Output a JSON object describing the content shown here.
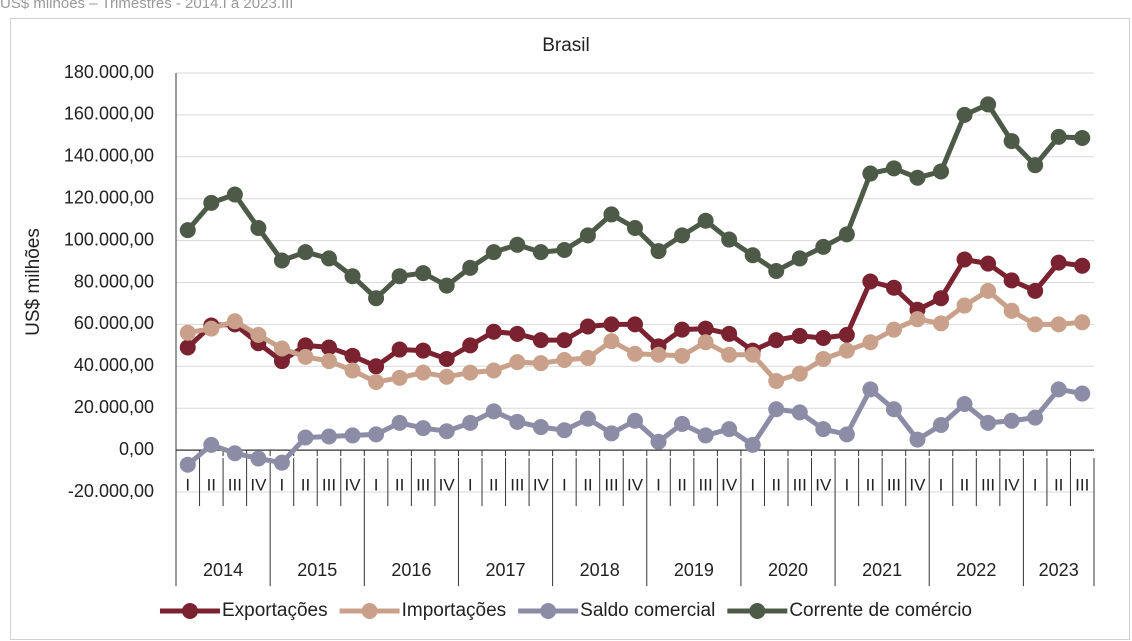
{
  "chart_data": {
    "type": "line",
    "note": "US$ milhões – Trimestres - 2014.I a 2023.III",
    "title": "Brasil",
    "y_label": "US$ milhões",
    "groups": [
      {
        "label": "2014",
        "categories": [
          "I",
          "II",
          "III",
          "IV"
        ]
      },
      {
        "label": "2015",
        "categories": [
          "I",
          "II",
          "III",
          "IV"
        ]
      },
      {
        "label": "2016",
        "categories": [
          "I",
          "II",
          "III",
          "IV"
        ]
      },
      {
        "label": "2017",
        "categories": [
          "I",
          "II",
          "III",
          "IV"
        ]
      },
      {
        "label": "2018",
        "categories": [
          "I",
          "II",
          "III",
          "IV"
        ]
      },
      {
        "label": "2019",
        "categories": [
          "I",
          "II",
          "III",
          "IV"
        ]
      },
      {
        "label": "2020",
        "categories": [
          "I",
          "II",
          "III",
          "IV"
        ]
      },
      {
        "label": "2021",
        "categories": [
          "I",
          "II",
          "III",
          "IV"
        ]
      },
      {
        "label": "2022",
        "categories": [
          "I",
          "II",
          "III",
          "IV"
        ]
      },
      {
        "label": "2023",
        "categories": [
          "I",
          "II",
          "III"
        ]
      }
    ],
    "series": [
      {
        "name": "Exportações",
        "color": "#7a2230",
        "values": [
          49000,
          59500,
          60000,
          51000,
          42500,
          50000,
          49000,
          45000,
          40000,
          48000,
          47500,
          43500,
          50000,
          56500,
          55500,
          52500,
          52500,
          59000,
          60000,
          60000,
          49500,
          57500,
          58000,
          55500,
          47500,
          52500,
          54500,
          53500,
          55000,
          80500,
          77500,
          67000,
          72500,
          91000,
          89000,
          81000,
          76000,
          89500,
          88000
        ]
      },
      {
        "name": "Importações",
        "color": "#c9a18a",
        "values": [
          56000,
          58000,
          61500,
          55000,
          48500,
          44500,
          42500,
          38000,
          32500,
          34500,
          37000,
          35000,
          37000,
          38000,
          42000,
          41500,
          43000,
          44000,
          52000,
          46000,
          45500,
          45000,
          51500,
          45500,
          45500,
          33000,
          36500,
          43500,
          47500,
          51500,
          57500,
          62500,
          60500,
          69000,
          76000,
          66500,
          60000,
          60000,
          61000
        ]
      },
      {
        "name": "Saldo comercial",
        "color": "#8d8ca6",
        "values": [
          -7000,
          2500,
          -1500,
          -4000,
          -6000,
          6000,
          6500,
          7000,
          7500,
          13000,
          10500,
          9000,
          13000,
          18500,
          13500,
          11000,
          9500,
          15000,
          8000,
          14000,
          4000,
          12500,
          7000,
          10000,
          2500,
          19500,
          18000,
          10000,
          7500,
          29000,
          19500,
          5000,
          12000,
          22000,
          13000,
          14000,
          15500,
          29000,
          27000
        ]
      },
      {
        "name": "Corrente de comércio",
        "color": "#4d5a47",
        "values": [
          105000,
          118000,
          122000,
          106000,
          90500,
          94500,
          91500,
          83000,
          72500,
          83000,
          84500,
          78500,
          87000,
          94500,
          98000,
          94500,
          95500,
          102500,
          112500,
          106000,
          95000,
          102500,
          109500,
          100500,
          93000,
          85500,
          91500,
          97000,
          103000,
          132000,
          134500,
          130000,
          133000,
          160000,
          165000,
          147500,
          136000,
          149500,
          149000
        ]
      }
    ],
    "ylim": [
      -20000,
      180000
    ],
    "yticks": [
      {
        "value": -20000,
        "label": "-20.000,00"
      },
      {
        "value": 0,
        "label": "0,00"
      },
      {
        "value": 20000,
        "label": "20.000,00"
      },
      {
        "value": 40000,
        "label": "40.000,00"
      },
      {
        "value": 60000,
        "label": "60.000,00"
      },
      {
        "value": 80000,
        "label": "80.000,00"
      },
      {
        "value": 100000,
        "label": "100.000,00"
      },
      {
        "value": 120000,
        "label": "120.000,00"
      },
      {
        "value": 140000,
        "label": "140.000,00"
      },
      {
        "value": 160000,
        "label": "160.000,00"
      },
      {
        "value": 180000,
        "label": "180.000,00"
      }
    ],
    "grid": true,
    "legend": "bottom"
  }
}
